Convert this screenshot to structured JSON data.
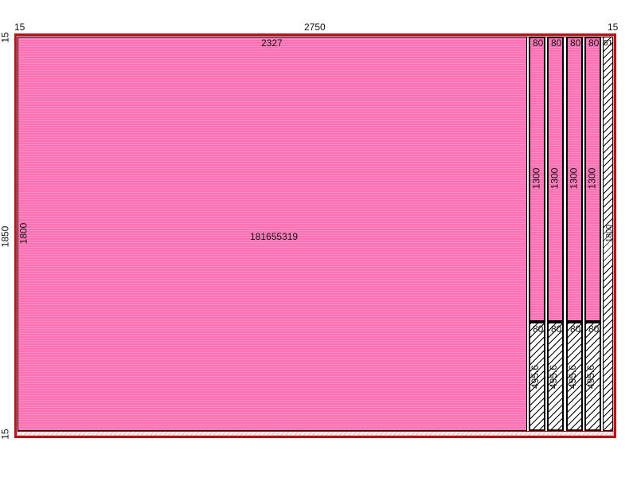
{
  "dimensions": {
    "top_left_margin": "15",
    "overall_width": "2750",
    "top_right_margin": "15",
    "left_top_margin": "15",
    "overall_height": "1850",
    "left_bottom_margin": "15"
  },
  "main_panel": {
    "width": "2327",
    "height": "1800",
    "code": "181655319"
  },
  "columns": [
    {
      "top_width": "80",
      "top_height": "1300",
      "bottom_width": "80",
      "bottom_height": "495.6"
    },
    {
      "top_width": "80",
      "top_height": "1300",
      "bottom_width": "80",
      "bottom_height": "495.6"
    },
    {
      "top_width": "80",
      "top_height": "1300",
      "bottom_width": "80",
      "bottom_height": "495.6"
    },
    {
      "top_width": "80",
      "top_height": "1300",
      "bottom_width": "80",
      "bottom_height": "495.6"
    }
  ],
  "last_column": {
    "width": "51",
    "height": "1800"
  },
  "colors": {
    "frame": "#b0161b",
    "glass": "#ff6fb5",
    "hatch": "#000000"
  }
}
